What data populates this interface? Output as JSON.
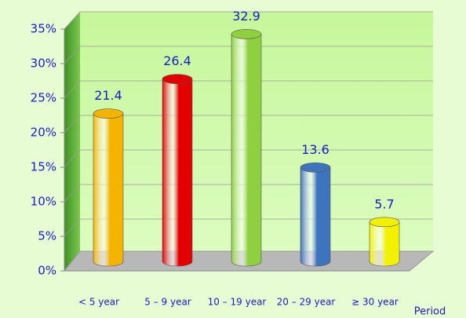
{
  "chart_data": {
    "type": "bar",
    "categories": [
      "< 5 year",
      "5 – 9 year",
      "10 – 19 year",
      "20 – 29 year",
      "≥ 30 year"
    ],
    "values": [
      21.4,
      26.4,
      32.9,
      13.6,
      5.7
    ],
    "colors": [
      "#f5b400",
      "#e40000",
      "#8ed040",
      "#3d74bd",
      "#f2f200"
    ],
    "x_label": "Period",
    "ylim": [
      0,
      35
    ],
    "yticks": [
      {
        "value": 0,
        "label": "0%"
      },
      {
        "value": 5,
        "label": "5%"
      },
      {
        "value": 10,
        "label": "10%"
      },
      {
        "value": 15,
        "label": "15%"
      },
      {
        "value": 20,
        "label": "20%"
      },
      {
        "value": 25,
        "label": "25%"
      },
      {
        "value": 30,
        "label": "30%"
      },
      {
        "value": 35,
        "label": "35%"
      }
    ],
    "grid": true
  }
}
